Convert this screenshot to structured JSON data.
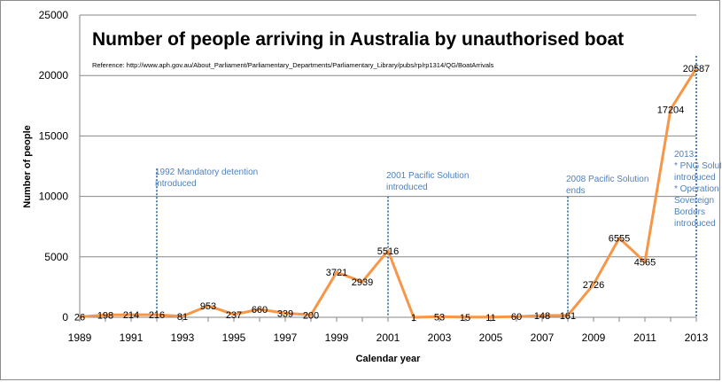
{
  "colors": {
    "line": "#f79646",
    "grid": "#868686",
    "annotation": "#4f81bd"
  },
  "chart_data": {
    "type": "line",
    "title": "Number of people arriving in Australia by unauthorised boat",
    "reference": "Reference: http://www.aph.gov.au/About_Parliament/Parliamentary_Departments/Parliamentary_Library/pubs/rp/rp1314/QG/BoatArrivals",
    "xlabel": "Calendar year",
    "ylabel": "Number of people",
    "xlim": [
      1989,
      2013
    ],
    "ylim": [
      0,
      25000
    ],
    "x_ticks": [
      "1989",
      "1991",
      "1993",
      "1995",
      "1997",
      "1999",
      "2001",
      "2003",
      "2005",
      "2007",
      "2009",
      "2011",
      "2013"
    ],
    "y_ticks": [
      "0",
      "5000",
      "10000",
      "15000",
      "20000",
      "25000"
    ],
    "grid": "horizontal",
    "series": [
      {
        "name": "Boat arrivals",
        "x": [
          1989,
          1990,
          1991,
          1992,
          1993,
          1994,
          1995,
          1996,
          1997,
          1998,
          1999,
          2000,
          2001,
          2002,
          2003,
          2004,
          2005,
          2006,
          2007,
          2008,
          2009,
          2010,
          2011,
          2012,
          2013
        ],
        "values": [
          26,
          198,
          214,
          216,
          81,
          953,
          237,
          660,
          339,
          200,
          3721,
          2939,
          5516,
          1,
          53,
          15,
          11,
          60,
          148,
          161,
          2726,
          6555,
          4565,
          17204,
          20587
        ]
      }
    ],
    "annotations": [
      {
        "year": 1992,
        "lines": [
          "1992 Mandatory detention",
          "introduced"
        ]
      },
      {
        "year": 2001,
        "lines": [
          "2001 Pacific Solution",
          "introduced"
        ]
      },
      {
        "year": 2008,
        "lines": [
          "2008 Pacific Solution",
          "ends"
        ]
      },
      {
        "year": 2013,
        "lines": [
          "2013:",
          "* PNG Solution",
          "introduced",
          "* Operation",
          "Sovereign",
          "Borders",
          "introduced"
        ]
      }
    ]
  }
}
